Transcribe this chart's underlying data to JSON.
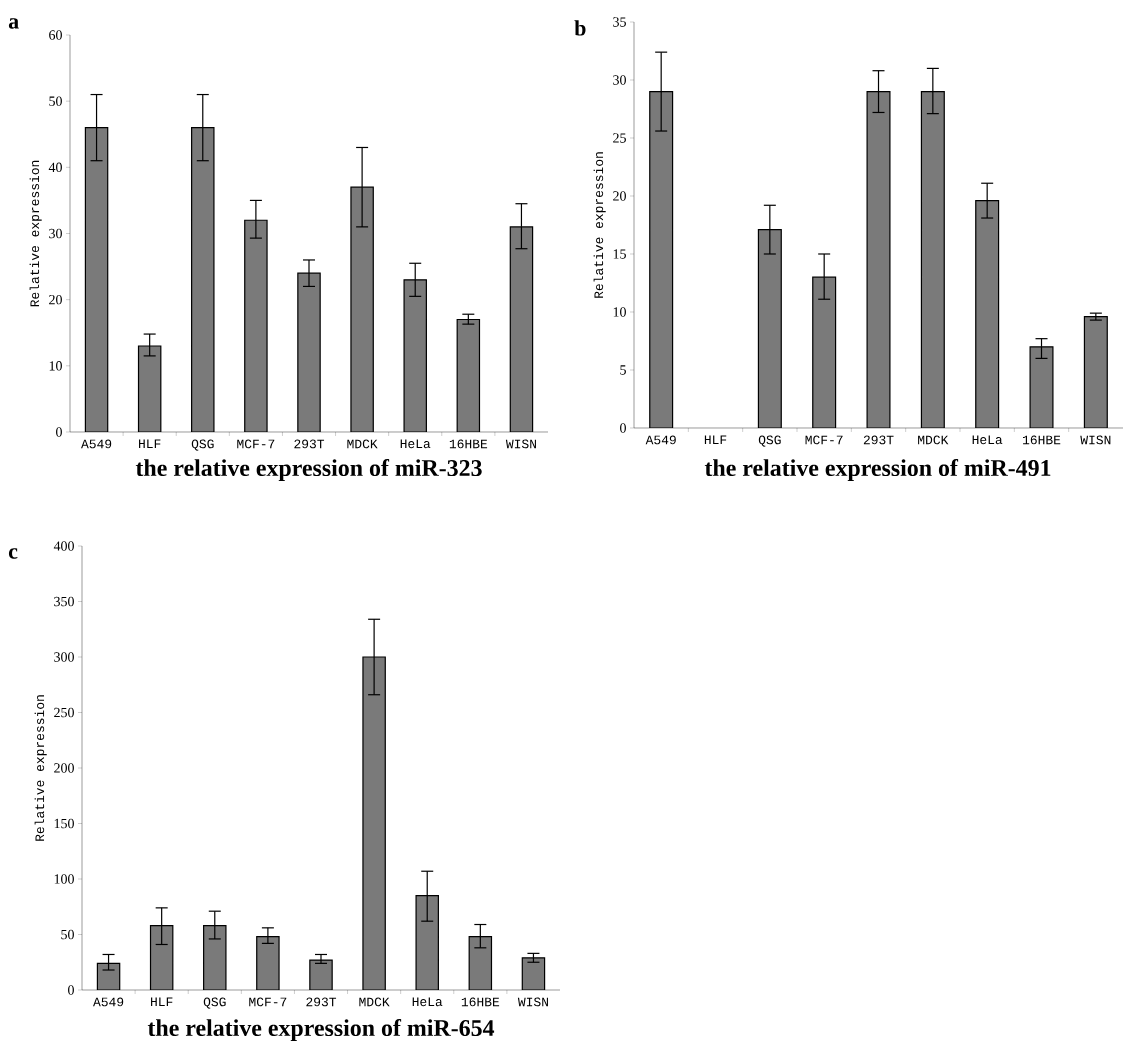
{
  "chart_data": [
    {
      "type": "bar",
      "title": "the relative expression of miR-323",
      "ylabel": "Relative expression",
      "annotations": [
        "a"
      ],
      "categories": [
        "A549",
        "HLF",
        "QSG",
        "MCF-7",
        "293T",
        "MDCK",
        "HeLa",
        "16HBE",
        "WISN"
      ],
      "values": [
        46,
        13,
        46,
        32,
        24,
        37,
        23,
        17,
        31
      ],
      "errors": [
        [
          41,
          51
        ],
        [
          11.5,
          14.8
        ],
        [
          41,
          51
        ],
        [
          29.3,
          35
        ],
        [
          22,
          26
        ],
        [
          31,
          43
        ],
        [
          20.5,
          25.5
        ],
        [
          16.3,
          17.8
        ],
        [
          27.7,
          34.5
        ]
      ],
      "color": "#7a7a7a",
      "ylim": [
        0,
        60
      ],
      "yticks": [
        0,
        10,
        20,
        30,
        40,
        50,
        60
      ]
    },
    {
      "type": "bar",
      "title": "the relative expression of miR-491",
      "ylabel": "Relative expression",
      "annotations": [
        "b"
      ],
      "categories": [
        "A549",
        "HLF",
        "QSG",
        "MCF-7",
        "293T",
        "MDCK",
        "HeLa",
        "16HBE",
        "WISN"
      ],
      "values": [
        29,
        null,
        17.1,
        13,
        29,
        29,
        19.6,
        7,
        9.6
      ],
      "errors": [
        [
          25.6,
          32.4
        ],
        null,
        [
          15,
          19.2
        ],
        [
          11.1,
          15
        ],
        [
          27.2,
          30.8
        ],
        [
          27.1,
          31
        ],
        [
          18.1,
          21.1
        ],
        [
          6,
          7.7
        ],
        [
          9.3,
          9.9
        ]
      ],
      "color": "#7a7a7a",
      "ylim": [
        0,
        35
      ],
      "yticks": [
        0,
        5,
        10,
        15,
        20,
        25,
        30,
        35
      ]
    },
    {
      "type": "bar",
      "title": "the relative expression of miR-654",
      "ylabel": "Relative expression",
      "annotations": [
        "c"
      ],
      "categories": [
        "A549",
        "HLF",
        "QSG",
        "MCF-7",
        "293T",
        "MDCK",
        "HeLa",
        "16HBE",
        "WISN"
      ],
      "values": [
        24,
        58,
        58,
        48,
        27,
        300,
        85,
        48,
        29
      ],
      "errors": [
        [
          18,
          32
        ],
        [
          41,
          74
        ],
        [
          46,
          71
        ],
        [
          42,
          56
        ],
        [
          24,
          32
        ],
        [
          266,
          334
        ],
        [
          62,
          107
        ],
        [
          38,
          59
        ],
        [
          25,
          33
        ]
      ],
      "color": "#7a7a7a",
      "ylim": [
        0,
        400
      ],
      "yticks": [
        0,
        50,
        100,
        150,
        200,
        250,
        300,
        350,
        400
      ]
    }
  ]
}
